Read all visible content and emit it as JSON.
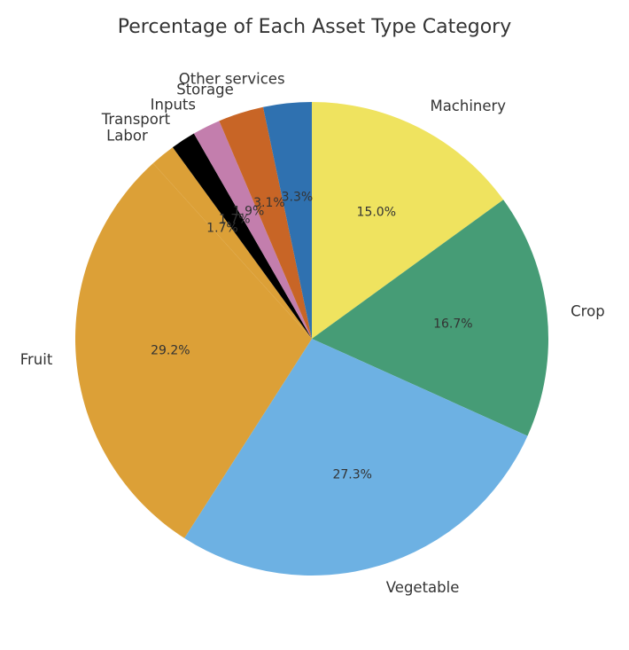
{
  "chart_data": {
    "type": "pie",
    "title": "Percentage of Each Asset Type Category",
    "start_angle_deg": 90,
    "direction": "clockwise",
    "slices": [
      {
        "label": "Machinery",
        "value": 15.0,
        "pct_label": "15.0%",
        "color": "#EFE35F"
      },
      {
        "label": "Crop",
        "value": 16.7,
        "pct_label": "16.7%",
        "color": "#469C76"
      },
      {
        "label": "Vegetable",
        "value": 27.3,
        "pct_label": "27.3%",
        "color": "#6DB1E3"
      },
      {
        "label": "Fruit",
        "value": 29.2,
        "pct_label": "29.2%",
        "color": "#DCA037"
      },
      {
        "label": "Labor",
        "value": 1.7,
        "pct_label": "1.7%",
        "color": "#DCA037"
      },
      {
        "label": "Transport",
        "value": 1.7,
        "pct_label": "1.7%",
        "color": "#000000"
      },
      {
        "label": "Inputs",
        "value": 1.9,
        "pct_label": "1.9%",
        "color": "#C37EAD"
      },
      {
        "label": "Storage",
        "value": 3.1,
        "pct_label": "3.1%",
        "color": "#C86526"
      },
      {
        "label": "Other services",
        "value": 3.3,
        "pct_label": "3.3%",
        "color": "#2F71B0"
      }
    ]
  }
}
